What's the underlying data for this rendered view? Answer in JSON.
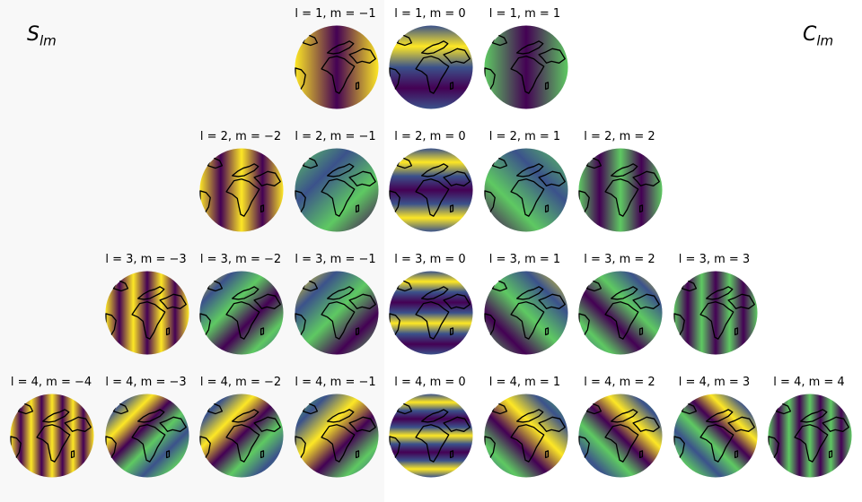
{
  "figure": {
    "left_label_main": "S",
    "left_label_sub": "lm",
    "right_label_main": "C",
    "right_label_sub": "lm",
    "palette": [
      "#440154",
      "#3b528b",
      "#21918c",
      "#5ec962",
      "#fde725"
    ]
  },
  "rows": [
    {
      "l": 1,
      "cells": [
        {
          "title": "l = 1, m = −1",
          "m": -1
        },
        {
          "title": "l = 1, m = 0",
          "m": 0
        },
        {
          "title": "l = 1, m = 1",
          "m": 1
        }
      ]
    },
    {
      "l": 2,
      "cells": [
        {
          "title": "l = 2, m = −2",
          "m": -2
        },
        {
          "title": "l = 2, m = −1",
          "m": -1
        },
        {
          "title": "l = 2, m = 0",
          "m": 0
        },
        {
          "title": "l = 2, m = 1",
          "m": 1
        },
        {
          "title": "l = 2, m = 2",
          "m": 2
        }
      ]
    },
    {
      "l": 3,
      "cells": [
        {
          "title": "l = 3, m = −3",
          "m": -3
        },
        {
          "title": "l = 3, m = −2",
          "m": -2
        },
        {
          "title": "l = 3, m = −1",
          "m": -1
        },
        {
          "title": "l = 3, m = 0",
          "m": 0
        },
        {
          "title": "l = 3, m = 1",
          "m": 1
        },
        {
          "title": "l = 3, m = 2",
          "m": 2
        },
        {
          "title": "l = 3, m = 3",
          "m": 3
        }
      ]
    },
    {
      "l": 4,
      "cells": [
        {
          "title": "l = 4, m = −4",
          "m": -4
        },
        {
          "title": "l = 4, m = −3",
          "m": -3
        },
        {
          "title": "l = 4, m = −2",
          "m": -2
        },
        {
          "title": "l = 4, m = −1",
          "m": -1
        },
        {
          "title": "l = 4, m = 0",
          "m": 0
        },
        {
          "title": "l = 4, m = 1",
          "m": 1
        },
        {
          "title": "l = 4, m = 2",
          "m": 2
        },
        {
          "title": "l = 4, m = 3",
          "m": 3
        },
        {
          "title": "l = 4, m = 4",
          "m": 4
        }
      ]
    }
  ]
}
